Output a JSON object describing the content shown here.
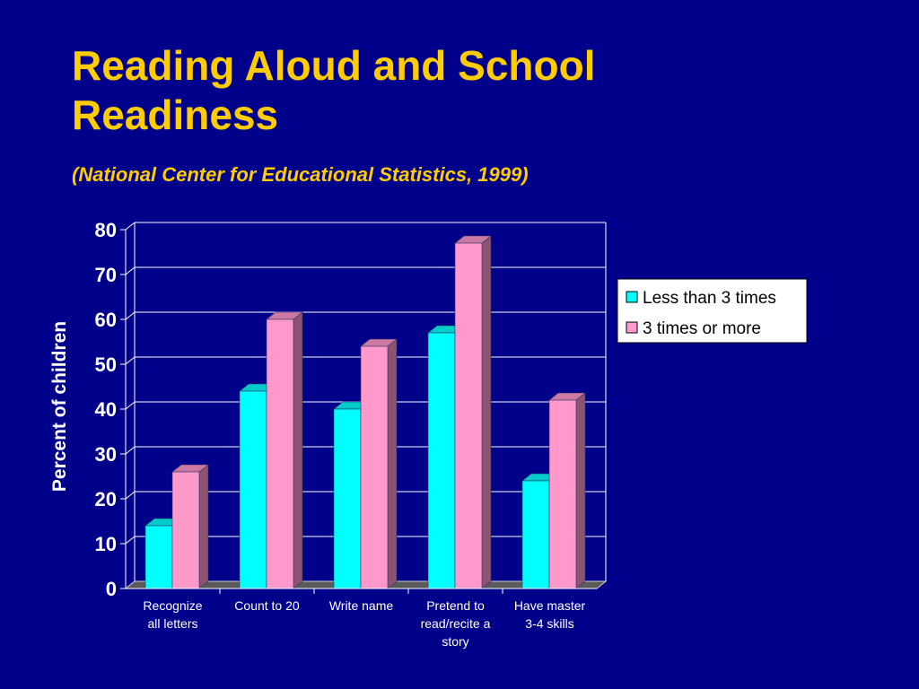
{
  "slide": {
    "title": "Reading Aloud and School Readiness",
    "subtitle": "(National Center for Educational Statistics, 1999)"
  },
  "chart_data": {
    "type": "bar",
    "categories": [
      [
        "Recognize",
        "all letters"
      ],
      [
        "Count to 20"
      ],
      [
        "Write name"
      ],
      [
        "Pretend to",
        "read/recite a",
        "story"
      ],
      [
        "Have master",
        "3-4 skills"
      ]
    ],
    "series": [
      {
        "name": "Less than 3 times",
        "values": [
          14,
          44,
          40,
          57,
          24
        ],
        "color": "#00ffff"
      },
      {
        "name": "3 times or more",
        "values": [
          26,
          60,
          54,
          77,
          42
        ],
        "color": "#ff99cc"
      }
    ],
    "ylabel": "Percent of children",
    "ylim": [
      0,
      80
    ],
    "yticks": [
      0,
      10,
      20,
      30,
      40,
      50,
      60,
      70,
      80
    ],
    "grid": true,
    "legend_position": "right",
    "colors": {
      "background": "#00008b",
      "title": "#ffcc00",
      "axis_text": "#ffffff",
      "gridline": "#ffffff"
    }
  }
}
